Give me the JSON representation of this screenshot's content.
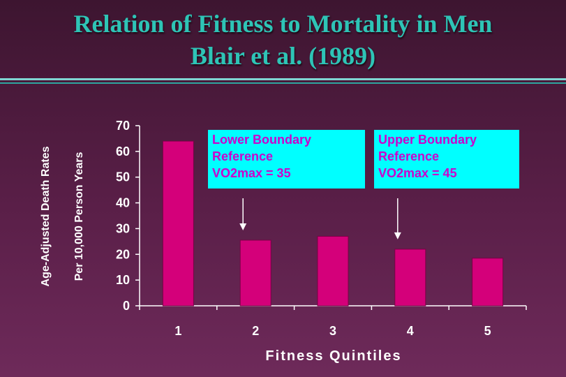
{
  "title": "Relation of Fitness to Mortality in Men",
  "subtitle": "Blair et al. (1989)",
  "callouts": {
    "lower": {
      "line1": "Lower Boundary",
      "line2": "Reference",
      "line3": "VO2max = 35"
    },
    "upper": {
      "line1": "Upper Boundary",
      "line2": "Reference",
      "line3": "VO2max = 45"
    }
  },
  "colors": {
    "bar": "#d4007a",
    "title": "#2ec4b6",
    "callout_bg": "#00ffff",
    "callout_text": "#cc00cc"
  },
  "chart_data": {
    "type": "bar",
    "categories": [
      "1",
      "2",
      "3",
      "4",
      "5"
    ],
    "values": [
      64,
      25.5,
      27,
      22,
      18.5
    ],
    "xlabel": "Fitness Quintiles",
    "ylabel_line1": "Age-Adjusted Death Rates",
    "ylabel_line2": "Per 10,000 Person Years",
    "ylim": [
      0,
      70
    ],
    "yticks": [
      "0",
      "10",
      "20",
      "30",
      "40",
      "50",
      "60",
      "70"
    ],
    "grid": false,
    "legend": "none"
  }
}
